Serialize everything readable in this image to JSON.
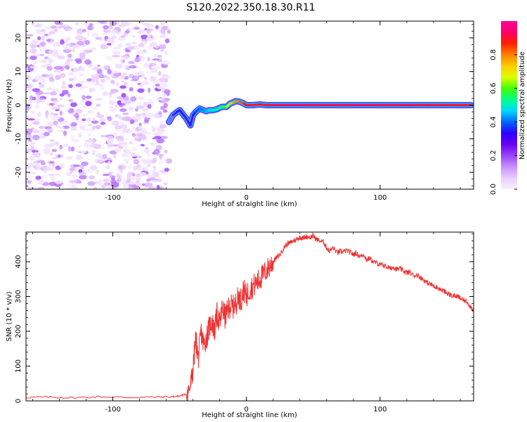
{
  "figure_title": "S120.2022.350.18.30.R11",
  "chart_data": [
    {
      "type": "heatmap",
      "title": "",
      "xlabel": "Height of straight line (km)",
      "ylabel": "Frequency (Hz)",
      "xlim": [
        -165,
        170
      ],
      "ylim": [
        -25,
        25
      ],
      "xticks": [
        -100,
        0,
        100
      ],
      "yticks": [
        -20,
        -10,
        0,
        10,
        20
      ],
      "colorbar": {
        "label": "Normalized spectral amplitude",
        "ticks": [
          0.0,
          0.2,
          0.4,
          0.6,
          0.8
        ],
        "range": [
          0,
          1
        ],
        "colormap": [
          "#f8f0ff",
          "#e8ccff",
          "#c890ff",
          "#9944ff",
          "#6a00f0",
          "#2a00ff",
          "#0066ff",
          "#00d8ff",
          "#00ff88",
          "#44ff00",
          "#ddff00",
          "#ffcc00",
          "#ff8000",
          "#ff2000",
          "#ff0066",
          "#ff0099"
        ]
      },
      "noise_region": {
        "x_range": [
          -165,
          -58
        ],
        "freq_range": [
          -25,
          25
        ],
        "amplitude_range": [
          0.02,
          0.2
        ]
      },
      "signal_track": {
        "x": [
          -58,
          -55,
          -52,
          -50,
          -48,
          -45,
          -42,
          -40,
          -38,
          -35,
          -32,
          -30,
          -28,
          -25,
          -22,
          -20,
          -18,
          -15,
          -12,
          -10,
          -8,
          -5,
          -2,
          0,
          5,
          10,
          15,
          20,
          30,
          40,
          60,
          80,
          100,
          120,
          140,
          160,
          168
        ],
        "frequency": [
          -5,
          -3,
          -2,
          -1.5,
          -2.5,
          -4,
          -6,
          -3,
          -2,
          -1,
          -1.5,
          -1.8,
          -1.5,
          -1.5,
          -1.2,
          -0.8,
          -0.5,
          -0.5,
          0.5,
          0.8,
          1.2,
          1,
          0.5,
          0,
          0,
          0.2,
          0,
          0,
          0,
          0,
          0,
          0,
          0,
          0,
          0,
          0,
          0
        ],
        "amplitude": [
          0.15,
          0.22,
          0.3,
          0.32,
          0.28,
          0.3,
          0.25,
          0.3,
          0.35,
          0.4,
          0.4,
          0.45,
          0.45,
          0.5,
          0.5,
          0.55,
          0.55,
          0.6,
          0.7,
          0.75,
          0.8,
          0.8,
          0.85,
          0.9,
          0.9,
          0.9,
          0.92,
          0.92,
          0.95,
          0.95,
          0.95,
          0.95,
          0.95,
          0.93,
          0.92,
          0.9,
          0.9
        ]
      }
    },
    {
      "type": "line",
      "title": "",
      "xlabel": "Height of straight line (km)",
      "ylabel": "SNR (10 * v/v)",
      "xlim": [
        -165,
        170
      ],
      "ylim": [
        0,
        485
      ],
      "xticks": [
        -100,
        0,
        100
      ],
      "yticks": [
        0,
        100,
        200,
        300,
        400
      ],
      "series": [
        {
          "color": "#ee3333",
          "x": [
            -165,
            -150,
            -130,
            -110,
            -90,
            -70,
            -55,
            -50,
            -45,
            -42,
            -40,
            -38,
            -36,
            -34,
            -32,
            -30,
            -28,
            -26,
            -24,
            -22,
            -20,
            -18,
            -16,
            -14,
            -12,
            -10,
            -8,
            -6,
            -4,
            -2,
            0,
            2,
            5,
            8,
            10,
            12,
            15,
            18,
            20,
            22,
            25,
            28,
            30,
            33,
            35,
            38,
            40,
            42,
            45,
            48,
            50,
            52,
            55,
            58,
            60,
            62,
            65,
            68,
            70,
            72,
            75,
            78,
            80,
            82,
            85,
            88,
            90,
            92,
            95,
            98,
            100,
            102,
            105,
            108,
            110,
            112,
            115,
            118,
            120,
            122,
            125,
            128,
            130,
            132,
            135,
            138,
            140,
            142,
            145,
            148,
            150,
            152,
            155,
            158,
            160,
            162,
            165,
            168,
            170
          ],
          "y": [
            10,
            11,
            9,
            12,
            10,
            11,
            12,
            14,
            20,
            40,
            90,
            180,
            120,
            200,
            160,
            180,
            210,
            230,
            200,
            250,
            220,
            270,
            240,
            260,
            275,
            270,
            280,
            300,
            290,
            320,
            300,
            320,
            330,
            340,
            350,
            360,
            375,
            390,
            400,
            410,
            420,
            440,
            450,
            455,
            460,
            465,
            470,
            468,
            472,
            470,
            475,
            465,
            460,
            455,
            440,
            430,
            440,
            425,
            430,
            428,
            432,
            426,
            420,
            425,
            415,
            420,
            405,
            410,
            400,
            395,
            390,
            392,
            385,
            380,
            385,
            378,
            380,
            372,
            368,
            370,
            360,
            362,
            355,
            350,
            340,
            335,
            330,
            328,
            320,
            315,
            310,
            305,
            302,
            300,
            295,
            290,
            285,
            270,
            260
          ]
        }
      ]
    }
  ]
}
